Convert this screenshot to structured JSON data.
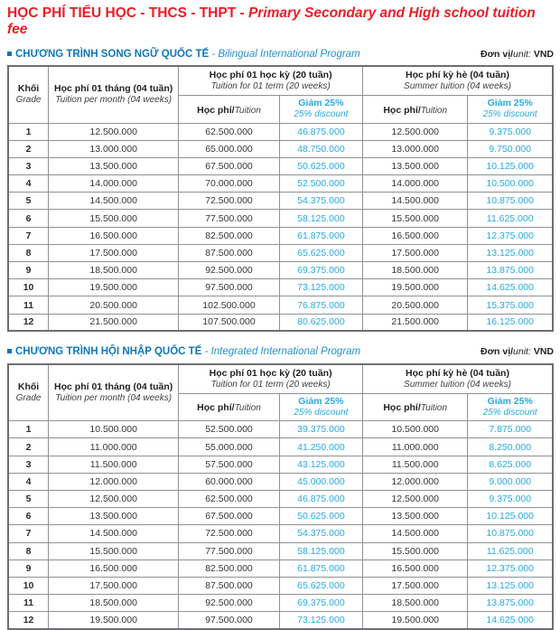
{
  "title": {
    "vi": "HỌC PHÍ TIỂU HỌC - THCS - THPT -",
    "en": " Primary Secondary and High school tuition fee"
  },
  "unit": {
    "vi": "Đơn vị/",
    "en": "unit:",
    "value": "VND"
  },
  "colors": {
    "title_red": "#ED1C24",
    "section_blue": "#0F76BC",
    "discount_blue": "#29A9E1",
    "border_gray": "#8F9194"
  },
  "table_header": {
    "grade_vi": "Khối",
    "grade_en": "Grade",
    "month_vi": "Học phí 01 tháng (04 tuần)",
    "month_en": "Tuition per month (04 weeks)",
    "term_vi": "Học phí 01 học kỳ (20 tuần)",
    "term_en": "Tuition for 01 term (20 weeks)",
    "summer_vi": "Học phí kỳ hè (04 tuần)",
    "summer_en": "Summer tuition (04 weeks)",
    "tuition_vi": "Học phí/",
    "tuition_en": "Tuition",
    "discount_vi": "Giảm 25%",
    "discount_en": "25% discount"
  },
  "sections": [
    {
      "title_vi": "CHƯƠNG TRÌNH SONG NGỮ QUỐC TẾ",
      "title_en": " - Bilingual International Program",
      "rows": [
        [
          "1",
          "12.500.000",
          "62.500.000",
          "46.875.000",
          "12.500.000",
          "9.375.000"
        ],
        [
          "2",
          "13.000.000",
          "65.000.000",
          "48.750.000",
          "13.000.000",
          "9.750.000"
        ],
        [
          "3",
          "13.500.000",
          "67.500.000",
          "50.625.000",
          "13.500.000",
          "10.125.000"
        ],
        [
          "4",
          "14.000.000",
          "70.000.000",
          "52.500.000",
          "14.000.000",
          "10.500.000"
        ],
        [
          "5",
          "14.500.000",
          "72.500.000",
          "54.375.000",
          "14.500.000",
          "10.875.000"
        ],
        [
          "6",
          "15.500.000",
          "77.500.000",
          "58.125.000",
          "15.500.000",
          "11.625.000"
        ],
        [
          "7",
          "16.500.000",
          "82.500.000",
          "61.875.000",
          "16.500.000",
          "12.375.000"
        ],
        [
          "8",
          "17.500.000",
          "87.500.000",
          "65.625.000",
          "17.500.000",
          "13.125.000"
        ],
        [
          "9",
          "18.500.000",
          "92.500.000",
          "69.375.000",
          "18.500.000",
          "13.875.000"
        ],
        [
          "10",
          "19.500.000",
          "97.500.000",
          "73.125.000",
          "19.500.000",
          "14.625.000"
        ],
        [
          "11",
          "20.500.000",
          "102.500.000",
          "76.875.000",
          "20.500.000",
          "15.375.000"
        ],
        [
          "12",
          "21.500.000",
          "107.500.000",
          "80.625.000",
          "21.500.000",
          "16.125.000"
        ]
      ]
    },
    {
      "title_vi": "CHƯƠNG TRÌNH HỘI NHẬP QUỐC TẾ",
      "title_en": " - Integrated International Program",
      "rows": [
        [
          "1",
          "10.500.000",
          "52.500.000",
          "39.375.000",
          "10.500.000",
          "7.875.000"
        ],
        [
          "2",
          "11.000.000",
          "55.000.000",
          "41.250.000",
          "11.000.000",
          "8.250.000"
        ],
        [
          "3",
          "11.500.000",
          "57.500.000",
          "43.125.000",
          "11.500.000",
          "8.625.000"
        ],
        [
          "4",
          "12.000.000",
          "60.000.000",
          "45.000.000",
          "12.000.000",
          "9.000.000"
        ],
        [
          "5",
          "12.500.000",
          "62.500.000",
          "46.875.000",
          "12.500.000",
          "9.375.000"
        ],
        [
          "6",
          "13.500.000",
          "67.500.000",
          "50.625.000",
          "13.500.000",
          "10.125.000"
        ],
        [
          "7",
          "14.500.000",
          "72.500.000",
          "54.375.000",
          "14.500.000",
          "10.875.000"
        ],
        [
          "8",
          "15.500.000",
          "77.500.000",
          "58.125.000",
          "15.500.000",
          "11.625.000"
        ],
        [
          "9",
          "16.500.000",
          "82.500.000",
          "61.875.000",
          "16.500.000",
          "12.375.000"
        ],
        [
          "10",
          "17.500.000",
          "87.500.000",
          "65.625.000",
          "17.500.000",
          "13.125.000"
        ],
        [
          "11",
          "18.500.000",
          "92.500.000",
          "69.375.000",
          "18.500.000",
          "13.875.000"
        ],
        [
          "12",
          "19.500.000",
          "97.500.000",
          "73.125.000",
          "19.500.000",
          "14.625.000"
        ]
      ]
    }
  ]
}
